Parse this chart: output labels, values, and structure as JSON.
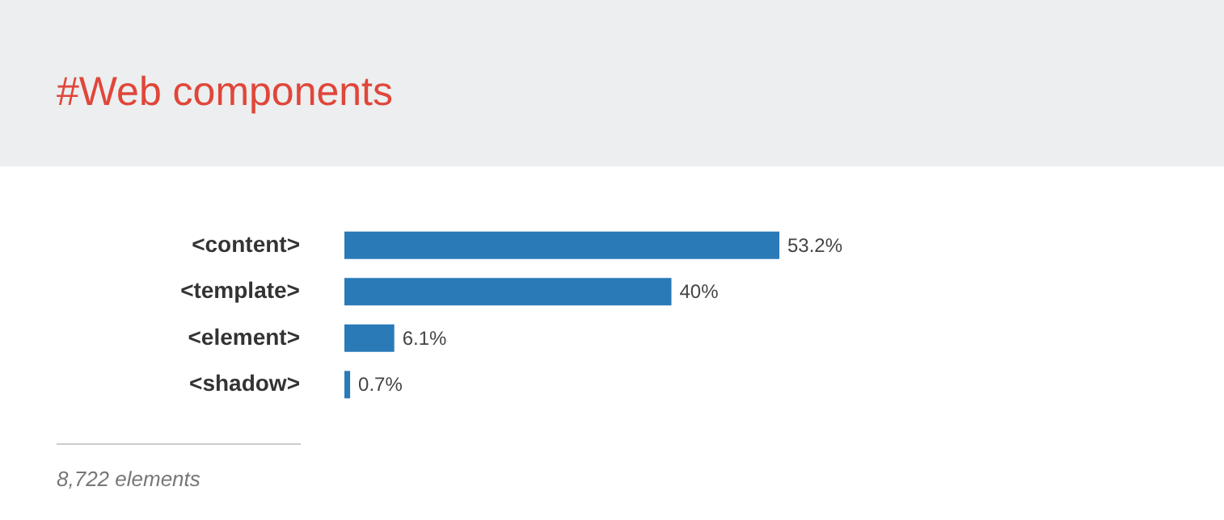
{
  "chart_data": {
    "type": "bar",
    "orientation": "horizontal",
    "title": "#Web components",
    "categories": [
      "<content>",
      "<template>",
      "<element>",
      "<shadow>"
    ],
    "values": [
      53.2,
      40,
      6.1,
      0.7
    ],
    "value_labels": [
      "53.2%",
      "40%",
      "6.1%",
      "0.7%"
    ],
    "color": "#2a7ab8",
    "annotations": [
      "8,722 elements"
    ]
  }
}
